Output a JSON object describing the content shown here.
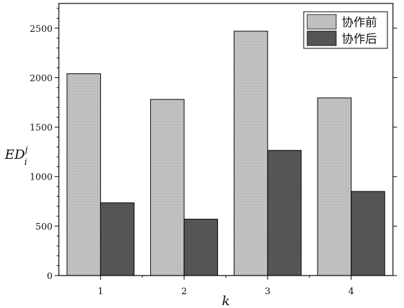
{
  "chart_data": {
    "type": "bar",
    "categories": [
      "1",
      "2",
      "3",
      "4"
    ],
    "series": [
      {
        "name": "协作前",
        "values": [
          2040,
          1780,
          2470,
          1795
        ],
        "color": "#c3c3c3",
        "grid_color": "#a4a4a4"
      },
      {
        "name": "协作后",
        "values": [
          735,
          570,
          1265,
          850
        ],
        "color": "#5a5a5a",
        "grid_color": "#3e3e3e"
      }
    ],
    "xlabel": "k",
    "ylabel": {
      "base": "ED",
      "sup": "j",
      "sub": "i"
    },
    "ylim": [
      0,
      2750
    ],
    "yticks": [
      0,
      500,
      1000,
      1500,
      2000,
      2500
    ],
    "minor_tick_step": 100,
    "legend": "top-right",
    "grid": false
  }
}
